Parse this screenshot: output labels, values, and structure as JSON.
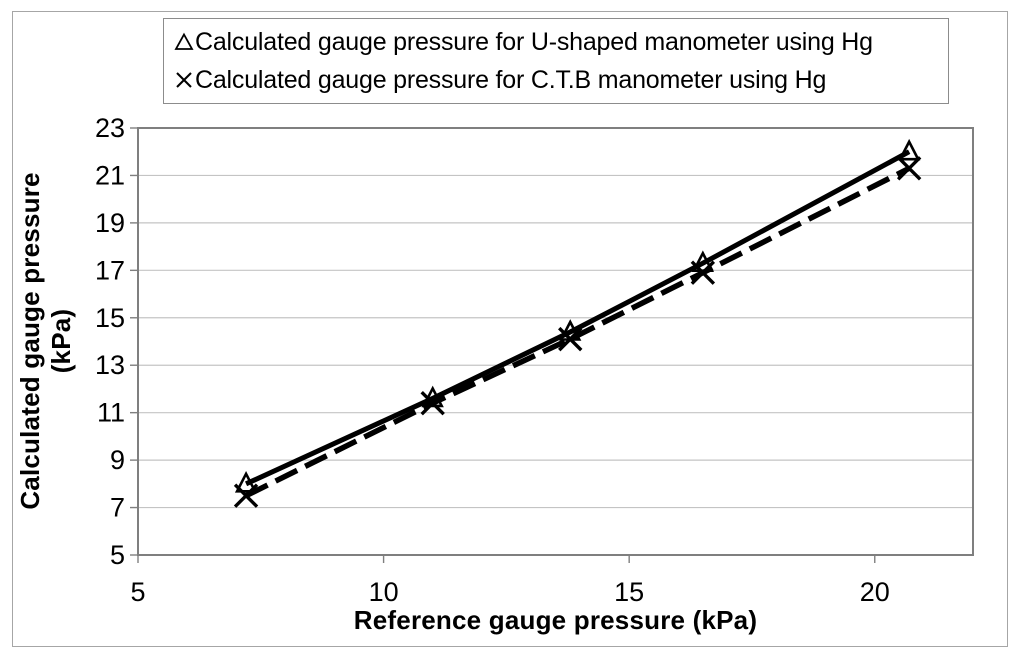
{
  "colors": {
    "series": "#000000",
    "plot_border": "#7f7f7f",
    "gridline": "#c4c4c4",
    "tick": "#7f7f7f",
    "figure_border": "#a6a6a6",
    "background": "#ffffff",
    "text": "#000000"
  },
  "chart_data": {
    "type": "line",
    "title": "",
    "xlabel": "Reference gauge pressure (kPa)",
    "ylabel": "Calculated gauge pressure (kPa)",
    "ylabel_lines": [
      "Calculated gauge pressure",
      "(kPa)"
    ],
    "xlim": [
      5,
      22
    ],
    "ylim": [
      5,
      23
    ],
    "x_ticks": [
      5,
      10,
      15,
      20
    ],
    "y_ticks": [
      5,
      7,
      9,
      11,
      13,
      15,
      17,
      19,
      21,
      23
    ],
    "grid": "horizontal",
    "legend_position": "top",
    "series": [
      {
        "name": "Calculated gauge pressure for U-shaped manometer using Hg",
        "marker": "triangle",
        "line_style": "solid",
        "color": "#000000",
        "x": [
          7.2,
          11.0,
          13.8,
          16.5,
          20.7
        ],
        "y": [
          8.0,
          11.6,
          14.4,
          17.3,
          22.0
        ]
      },
      {
        "name": "Calculated gauge pressure for C.T.B manometer using Hg",
        "marker": "x",
        "line_style": "dashed",
        "color": "#000000",
        "x": [
          7.2,
          11.0,
          13.8,
          16.5,
          20.7
        ],
        "y": [
          7.5,
          11.4,
          14.1,
          16.9,
          21.3
        ]
      }
    ]
  }
}
